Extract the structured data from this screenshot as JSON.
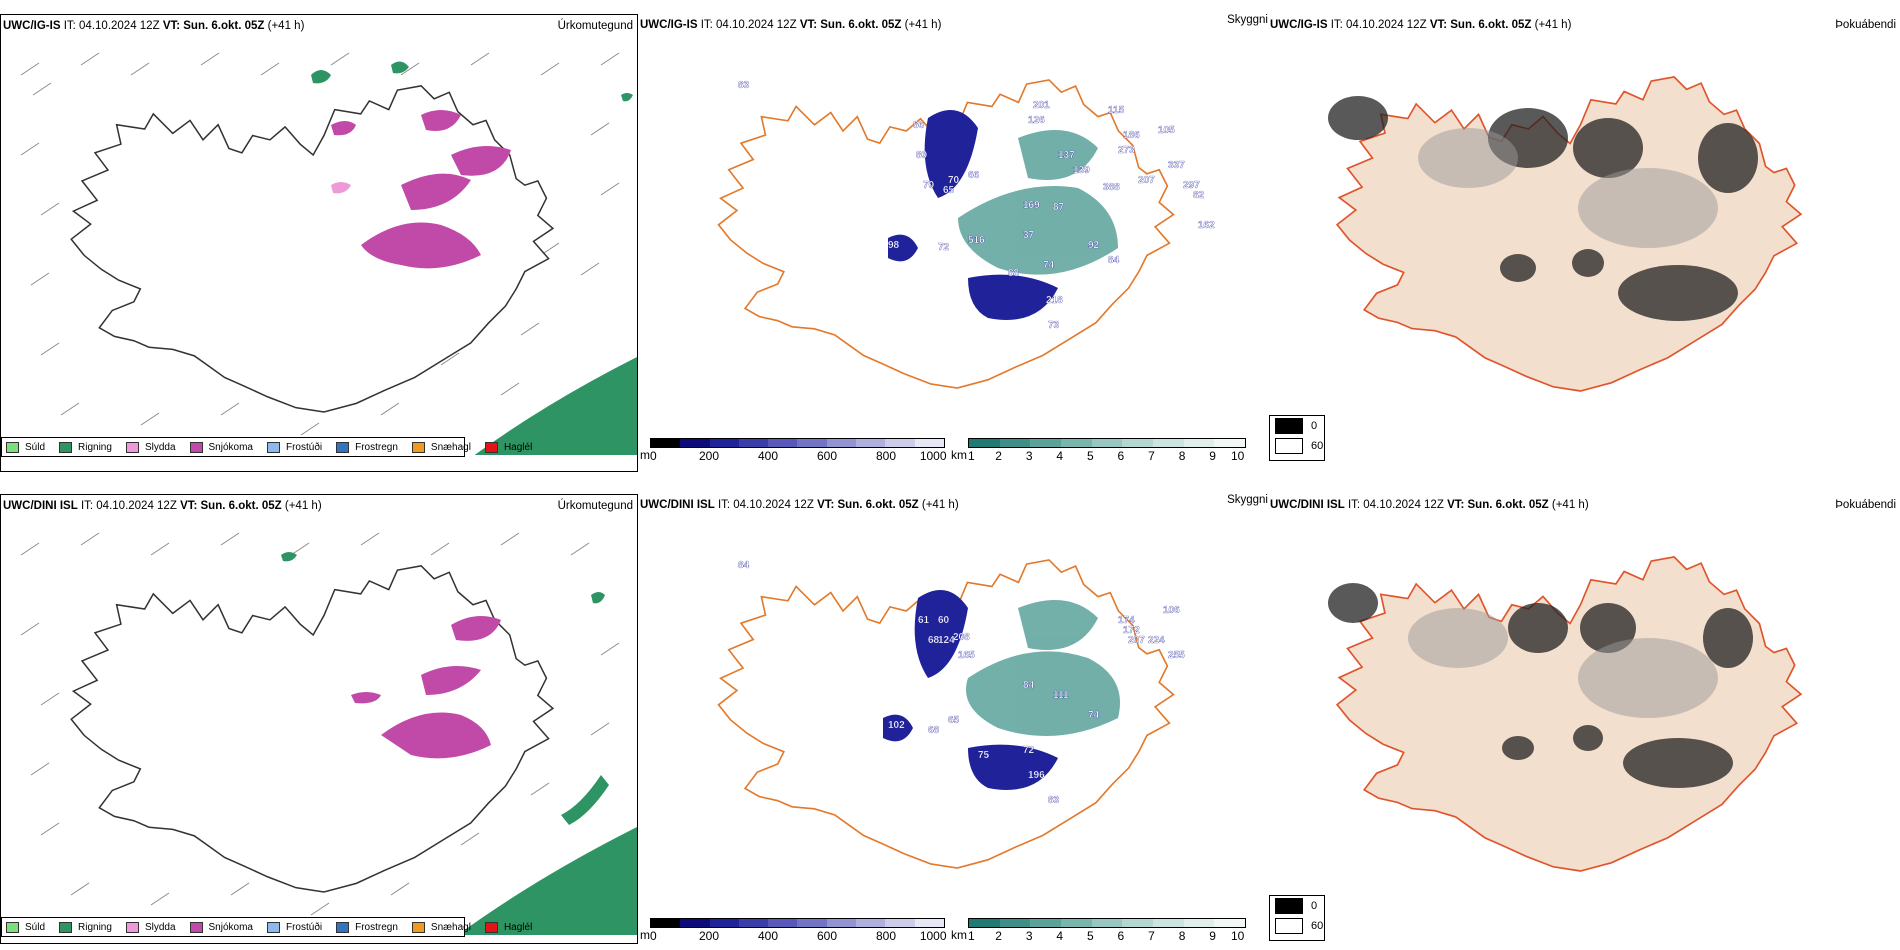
{
  "colors": {
    "coast": "#000000",
    "road": "#e3792a",
    "glacier_outline": "#222222",
    "land": "#f3dfcd",
    "shade_road": "#e0542c",
    "river": "#8fa8f0"
  },
  "precip_legend": [
    {
      "label": "Súld",
      "color": "#7be07b"
    },
    {
      "label": "Rigning",
      "color": "#2e9463"
    },
    {
      "label": "Slydda",
      "color": "#ee9ad8"
    },
    {
      "label": "Snjókoma",
      "color": "#c14aa8"
    },
    {
      "label": "Frostúði",
      "color": "#8fb8ef"
    },
    {
      "label": "Frostregn",
      "color": "#2f74c6"
    },
    {
      "label": "Snæhagl",
      "color": "#ef9b22"
    },
    {
      "label": "Haglél",
      "color": "#e31414"
    }
  ],
  "ceiling_scale": {
    "unit": "m",
    "ticks": [
      "0",
      "200",
      "400",
      "600",
      "800",
      "1000"
    ],
    "colors": [
      "#000000",
      "#0d0b7a",
      "#20229a",
      "#3b3da8",
      "#5758b8",
      "#7474c4",
      "#9393d2",
      "#b0b0de",
      "#cdcdea",
      "#e7e7f5"
    ]
  },
  "visibility_scale": {
    "unit": "km",
    "ticks": [
      "1",
      "2",
      "3",
      "4",
      "5",
      "6",
      "7",
      "8",
      "9",
      "10"
    ],
    "colors": [
      "#1f7a74",
      "#3f8f88",
      "#5aa29a",
      "#78b5ad",
      "#96c7c0",
      "#b2d6d0",
      "#cbe4df",
      "#e0efec",
      "#f2f8f6"
    ]
  },
  "cloud_scale": {
    "items": [
      {
        "value": "0",
        "color": "#000000"
      },
      {
        "value": "60",
        "color": "#ffffff"
      }
    ]
  },
  "rows": [
    {
      "model": "UWC/IG-IS",
      "it": "IT: 04.10.2024 12Z",
      "vt_label": "VT:",
      "vt": "Sun. 6.okt. 05Z",
      "lead": "(+41 h)",
      "titles": {
        "precip": "Úrkomutegund",
        "ceiling": "Skyggni",
        "cloud": "Þokuábendi"
      },
      "ceiling_labels": [
        "83",
        "86",
        "80",
        "70",
        "70",
        "65",
        "66",
        "201",
        "126",
        "137",
        "139",
        "115",
        "169",
        "87",
        "37",
        "516",
        "88",
        "74",
        "218",
        "73",
        "92",
        "84",
        "207",
        "273",
        "186",
        "388",
        "105",
        "337",
        "297",
        "82",
        "162",
        "98",
        "72"
      ]
    },
    {
      "model": "UWC/DINI ISL",
      "it": "IT: 04.10.2024 12Z",
      "vt_label": "VT:",
      "vt": "Sun. 6.okt. 05Z",
      "lead": "(+41 h)",
      "titles": {
        "precip": "Úrkomutegund",
        "ceiling": "Skyggni",
        "cloud": "Þokuábendi"
      },
      "ceiling_labels": [
        "84",
        "61",
        "60",
        "68",
        "124",
        "208",
        "165",
        "84",
        "111",
        "174",
        "172",
        "207",
        "224",
        "255",
        "106",
        "75",
        "72",
        "196",
        "83",
        "74",
        "102",
        "68",
        "65"
      ]
    }
  ]
}
